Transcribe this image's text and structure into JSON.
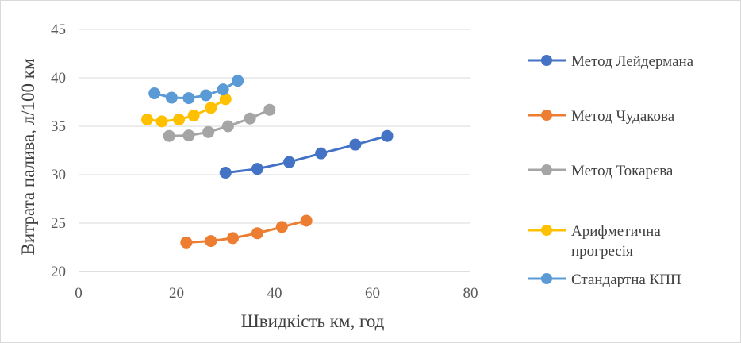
{
  "chart_data": {
    "type": "line",
    "title": "",
    "xlabel": "Швидкість км, год",
    "ylabel": "Витрата палива, л/100 км",
    "xlim": [
      0,
      80
    ],
    "ylim": [
      20,
      45
    ],
    "xticks": [
      0,
      20,
      40,
      60,
      80
    ],
    "yticks": [
      20,
      25,
      30,
      35,
      40,
      45
    ],
    "grid": "horizontal",
    "legend_position": "right",
    "series": [
      {
        "name": "Метод Лейдермана",
        "color": "#4472C4",
        "x": [
          30,
          36.5,
          43,
          49.5,
          56.5,
          63
        ],
        "y": [
          30.2,
          30.6,
          31.3,
          32.2,
          33.1,
          34.0
        ]
      },
      {
        "name": "Метод Чудакова",
        "color": "#ED7D31",
        "x": [
          22,
          27,
          31.5,
          36.5,
          41.5,
          46.5
        ],
        "y": [
          23.0,
          23.15,
          23.45,
          23.95,
          24.6,
          25.25
        ]
      },
      {
        "name": "Метод Токарєва",
        "color": "#A5A5A5",
        "x": [
          18.5,
          22.5,
          26.5,
          30.5,
          35,
          39
        ],
        "y": [
          34.0,
          34.05,
          34.4,
          35.0,
          35.8,
          36.7
        ]
      },
      {
        "name": "Арифметична прогресія",
        "legend_lines": [
          "Арифметична",
          "прогресія"
        ],
        "color": "#FFC000",
        "x": [
          14,
          17,
          20.5,
          23.5,
          27,
          30
        ],
        "y": [
          35.7,
          35.5,
          35.7,
          36.1,
          36.9,
          37.8
        ]
      },
      {
        "name": "Стандартна КПП",
        "color": "#5B9BD5",
        "x": [
          15.5,
          19,
          22.5,
          26,
          29.5,
          32.5
        ],
        "y": [
          38.4,
          37.95,
          37.9,
          38.2,
          38.8,
          39.7
        ]
      }
    ]
  }
}
